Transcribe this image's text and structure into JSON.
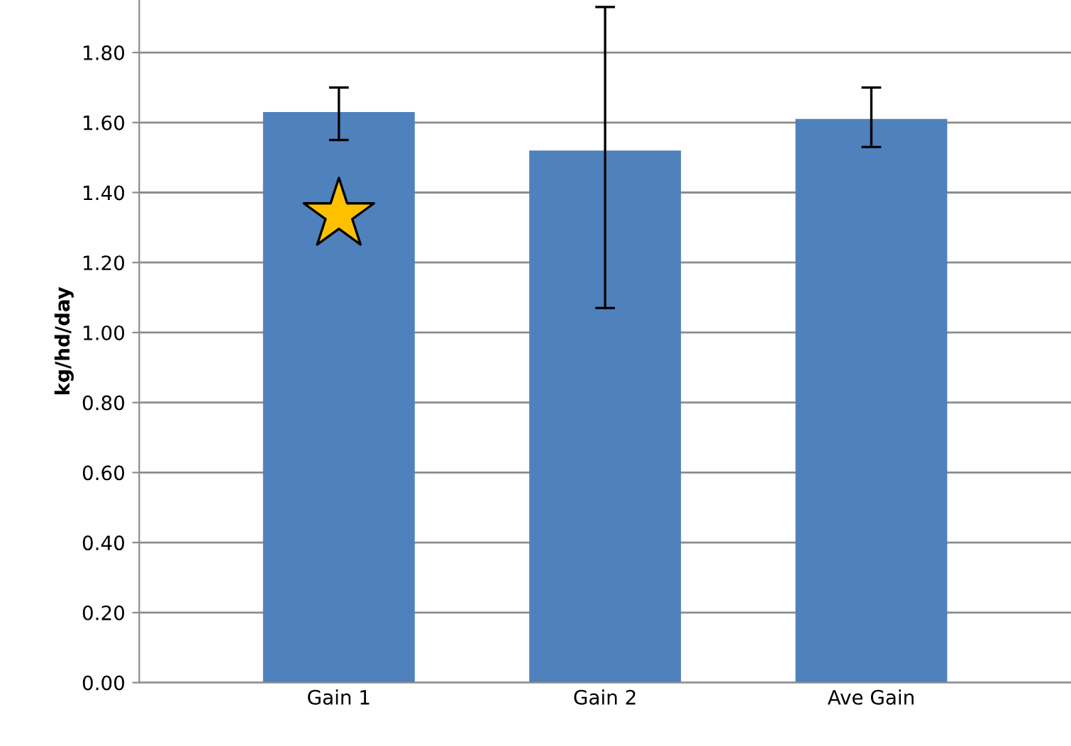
{
  "chart_data": {
    "type": "bar",
    "ylabel": "kg/hd/day",
    "categories": [
      "Gain 1",
      "Gain 2",
      "Ave Gain"
    ],
    "values": [
      1.63,
      1.52,
      1.61
    ],
    "errors": [
      [
        1.55,
        1.7
      ],
      [
        1.07,
        1.93
      ],
      [
        1.53,
        1.7
      ]
    ],
    "color": "#4f81bd",
    "ylim": [
      0,
      1.95
    ],
    "yticks": [
      {
        "value": 0,
        "label": "0.00"
      },
      {
        "value": 0.2,
        "label": "0.20"
      },
      {
        "value": 0.4,
        "label": "0.40"
      },
      {
        "value": 0.6,
        "label": "0.60"
      },
      {
        "value": 0.8,
        "label": "0.80"
      },
      {
        "value": 1.0,
        "label": "1.00"
      },
      {
        "value": 1.2,
        "label": "1.20"
      },
      {
        "value": 1.4,
        "label": "1.40"
      },
      {
        "value": 1.6,
        "label": "1.60"
      },
      {
        "value": 1.8,
        "label": "1.80"
      }
    ],
    "grid": "y",
    "legend": false
  }
}
